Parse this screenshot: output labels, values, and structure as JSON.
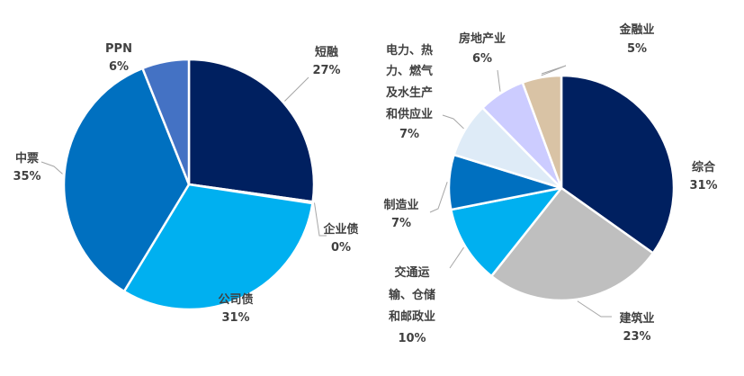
{
  "chart_data": [
    {
      "type": "pie",
      "title": "",
      "start_angle_deg": 0,
      "slices": [
        {
          "label": "短融",
          "pct_label": "27%",
          "value": 27,
          "color": "#002060"
        },
        {
          "label": "企业债",
          "pct_label": "0%",
          "value": 0.2,
          "color": "#1F4E79"
        },
        {
          "label": "公司债",
          "pct_label": "31%",
          "value": 31,
          "color": "#00B0F0"
        },
        {
          "label": "中票",
          "pct_label": "35%",
          "value": 35,
          "color": "#0070C0"
        },
        {
          "label": "PPN",
          "pct_label": "6%",
          "value": 6,
          "color": "#4472C4"
        }
      ]
    },
    {
      "type": "pie",
      "title": "",
      "start_angle_deg": 0,
      "slices": [
        {
          "label": "综合",
          "pct_label": "31%",
          "value": 31,
          "color": "#002060"
        },
        {
          "label": "建筑业",
          "pct_label": "23%",
          "value": 23,
          "color": "#BFBFBF"
        },
        {
          "label": "交通运输、仓储和邮政业",
          "pct_label": "10%",
          "value": 10,
          "color": "#00B0F0"
        },
        {
          "label": "制造业",
          "pct_label": "7%",
          "value": 7,
          "color": "#0070C0"
        },
        {
          "label": "电力、热力、燃气及水生产和供应业",
          "pct_label": "7%",
          "value": 7,
          "color": "#DEEBF7"
        },
        {
          "label": "房地产业",
          "pct_label": "6%",
          "value": 6,
          "color": "#CCCCFF"
        },
        {
          "label": "金融业",
          "pct_label": "5%",
          "value": 5,
          "color": "#D9C3A5"
        }
      ]
    }
  ]
}
